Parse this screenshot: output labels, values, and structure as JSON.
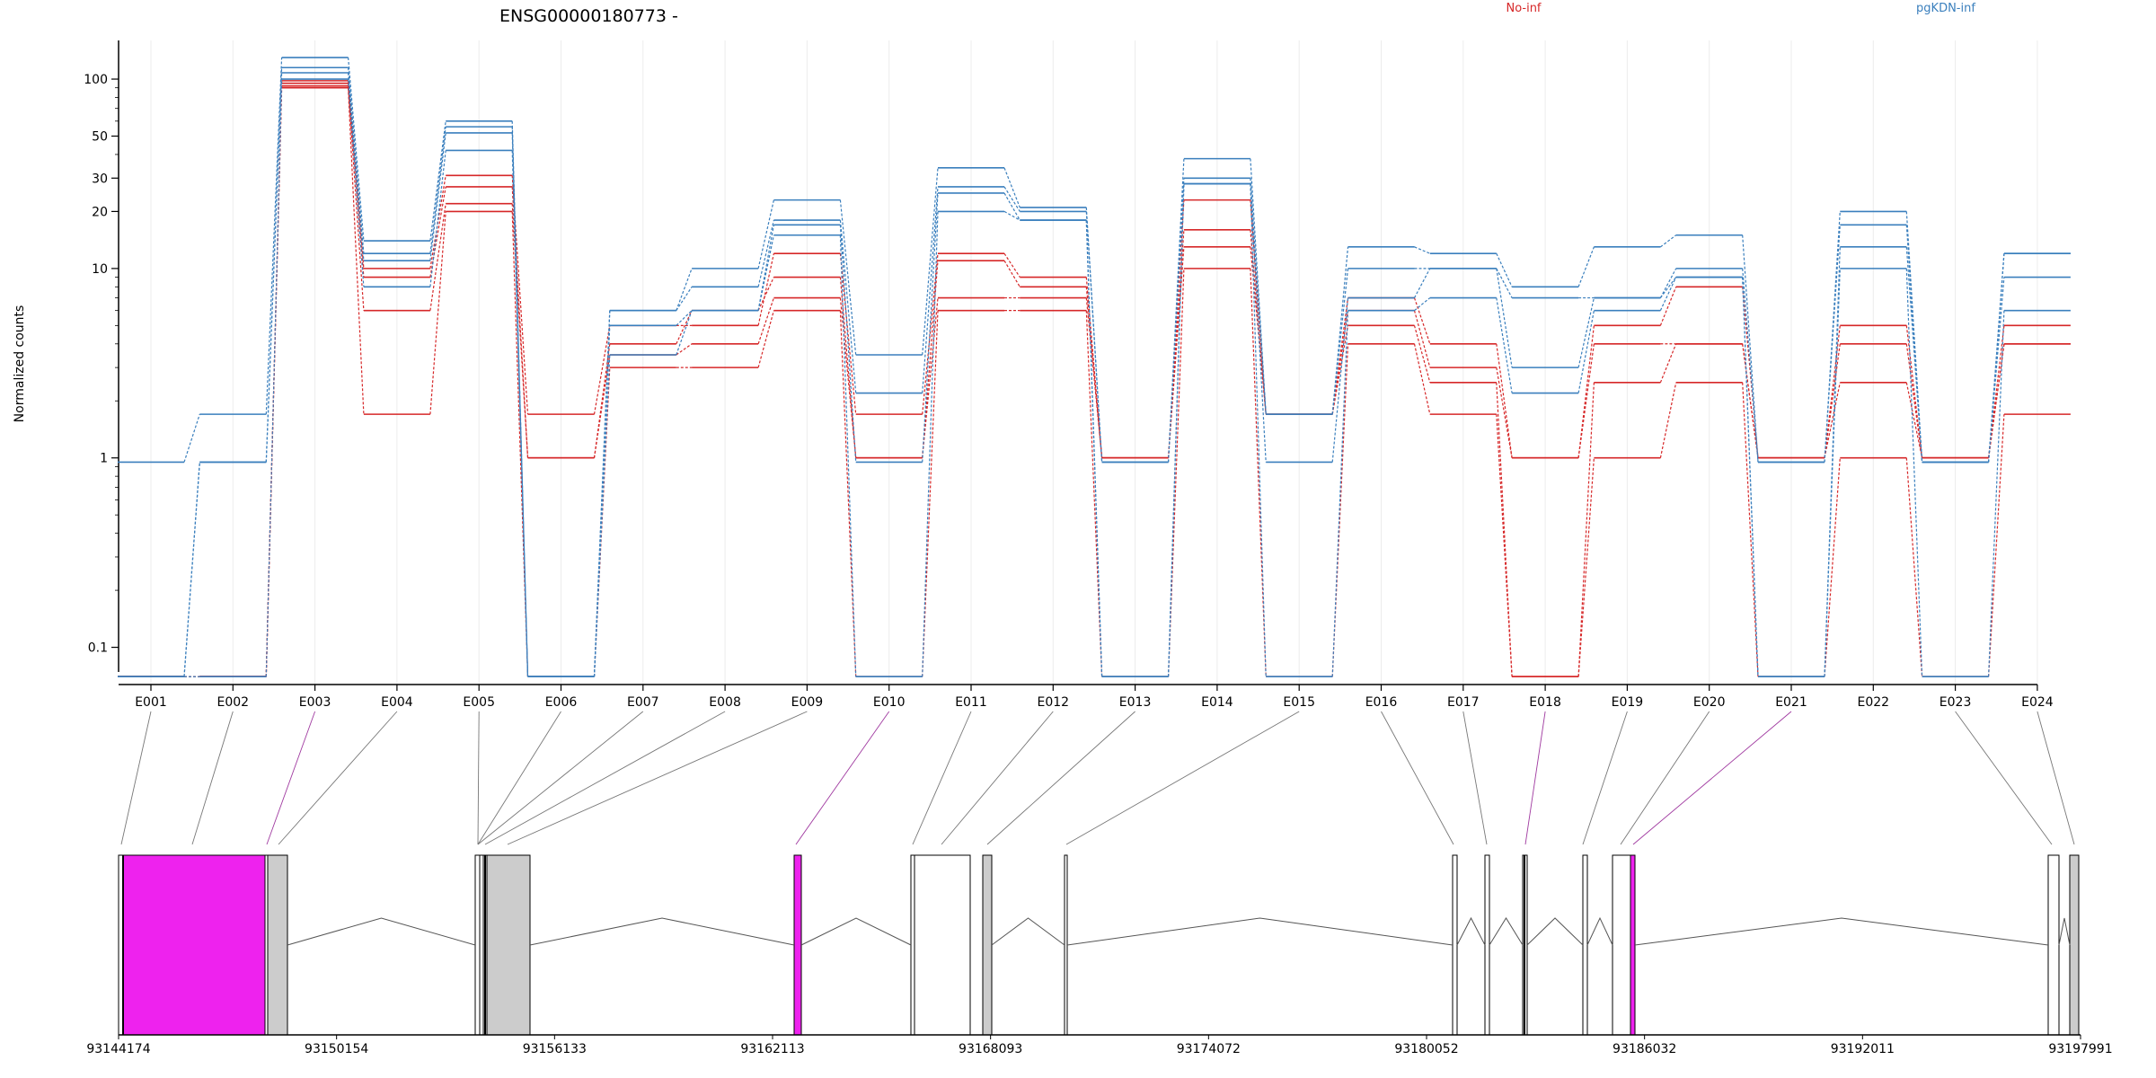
{
  "chart_data": {
    "type": "line",
    "title": "ENSG00000180773 -",
    "ylabel": "Normalized counts",
    "xlabel": "",
    "y_scale": "log",
    "ylim": [
      0.08,
      160
    ],
    "yticks": [
      0.1,
      1,
      10,
      20,
      30,
      50,
      100
    ],
    "grid": "vertical lines at exon positions",
    "legend_position": "top-right",
    "legend": [
      {
        "name": "No-inf",
        "color": "#d62728"
      },
      {
        "name": "pgKDN-inf",
        "color": "#3a7fbd"
      }
    ],
    "categories": [
      "E001",
      "E002",
      "E003",
      "E004",
      "E005",
      "E006",
      "E007",
      "E008",
      "E009",
      "E010",
      "E011",
      "E012",
      "E013",
      "E014",
      "E015",
      "E016",
      "E017",
      "E018",
      "E019",
      "E020",
      "E021",
      "E022",
      "E023",
      "E024"
    ],
    "series": [
      {
        "group": "No-inf",
        "color": "#d62728",
        "values": [
          0.07,
          0.07,
          98,
          10,
          31,
          1.7,
          5,
          5,
          12,
          1.7,
          12,
          9,
          1,
          23,
          1.7,
          7,
          4,
          1,
          5,
          8,
          1,
          5,
          1,
          5
        ]
      },
      {
        "group": "No-inf",
        "color": "#d62728",
        "values": [
          0.07,
          0.07,
          95,
          9,
          27,
          1,
          4,
          6,
          9,
          1,
          11,
          8,
          1,
          16,
          1.7,
          6,
          3,
          1,
          4,
          4,
          1,
          4,
          1,
          4
        ]
      },
      {
        "group": "No-inf",
        "color": "#d62728",
        "values": [
          0.07,
          0.07,
          92,
          6,
          22,
          1,
          3.5,
          4,
          7,
          1,
          7,
          7,
          1,
          13,
          1.7,
          5,
          2.5,
          0.07,
          2.5,
          4,
          1,
          2.5,
          1,
          4
        ]
      },
      {
        "group": "No-inf",
        "color": "#d62728",
        "values": [
          0.07,
          0.07,
          90,
          1.7,
          20,
          0.07,
          3,
          3,
          6,
          0.07,
          6,
          6,
          0.07,
          10,
          0.07,
          4,
          1.7,
          0.07,
          1,
          2.5,
          0.07,
          1,
          0.07,
          1.7
        ]
      },
      {
        "group": "pgKDN-inf",
        "color": "#3a7fbd",
        "values": [
          0.95,
          1.7,
          130,
          14,
          60,
          0.07,
          6,
          10,
          23,
          3.5,
          34,
          21,
          0.95,
          38,
          1.7,
          13,
          12,
          8,
          13,
          15,
          0.95,
          20,
          0.95,
          12
        ]
      },
      {
        "group": "pgKDN-inf",
        "color": "#3a7fbd",
        "values": [
          0.07,
          0.95,
          115,
          12,
          56,
          0.07,
          6,
          8,
          18,
          2.2,
          27,
          20,
          0.95,
          30,
          1.7,
          10,
          10,
          7,
          7,
          10,
          0.95,
          17,
          0.95,
          12
        ]
      },
      {
        "group": "pgKDN-inf",
        "color": "#3a7fbd",
        "values": [
          0.07,
          0.95,
          108,
          11,
          52,
          0.07,
          5,
          6,
          17,
          0.95,
          25,
          18,
          0.07,
          28,
          0.95,
          7,
          10,
          3,
          7,
          9,
          0.07,
          13,
          0.95,
          9
        ]
      },
      {
        "group": "pgKDN-inf",
        "color": "#3a7fbd",
        "values": [
          0.07,
          0.07,
          100,
          8,
          42,
          0.07,
          3.5,
          6,
          15,
          0.07,
          20,
          18,
          0.07,
          28,
          0.07,
          6,
          7,
          2.2,
          6,
          9,
          0.07,
          10,
          0.07,
          6
        ]
      }
    ],
    "gene_model": {
      "genomic_ticks": [
        "93144174",
        "93150154",
        "93156133",
        "93162113",
        "93168093",
        "93174072",
        "93180052",
        "93186032",
        "93192011",
        "93197991"
      ],
      "highlight_color": "#ee22ee",
      "exon_box_color": "#cccccc"
    }
  }
}
